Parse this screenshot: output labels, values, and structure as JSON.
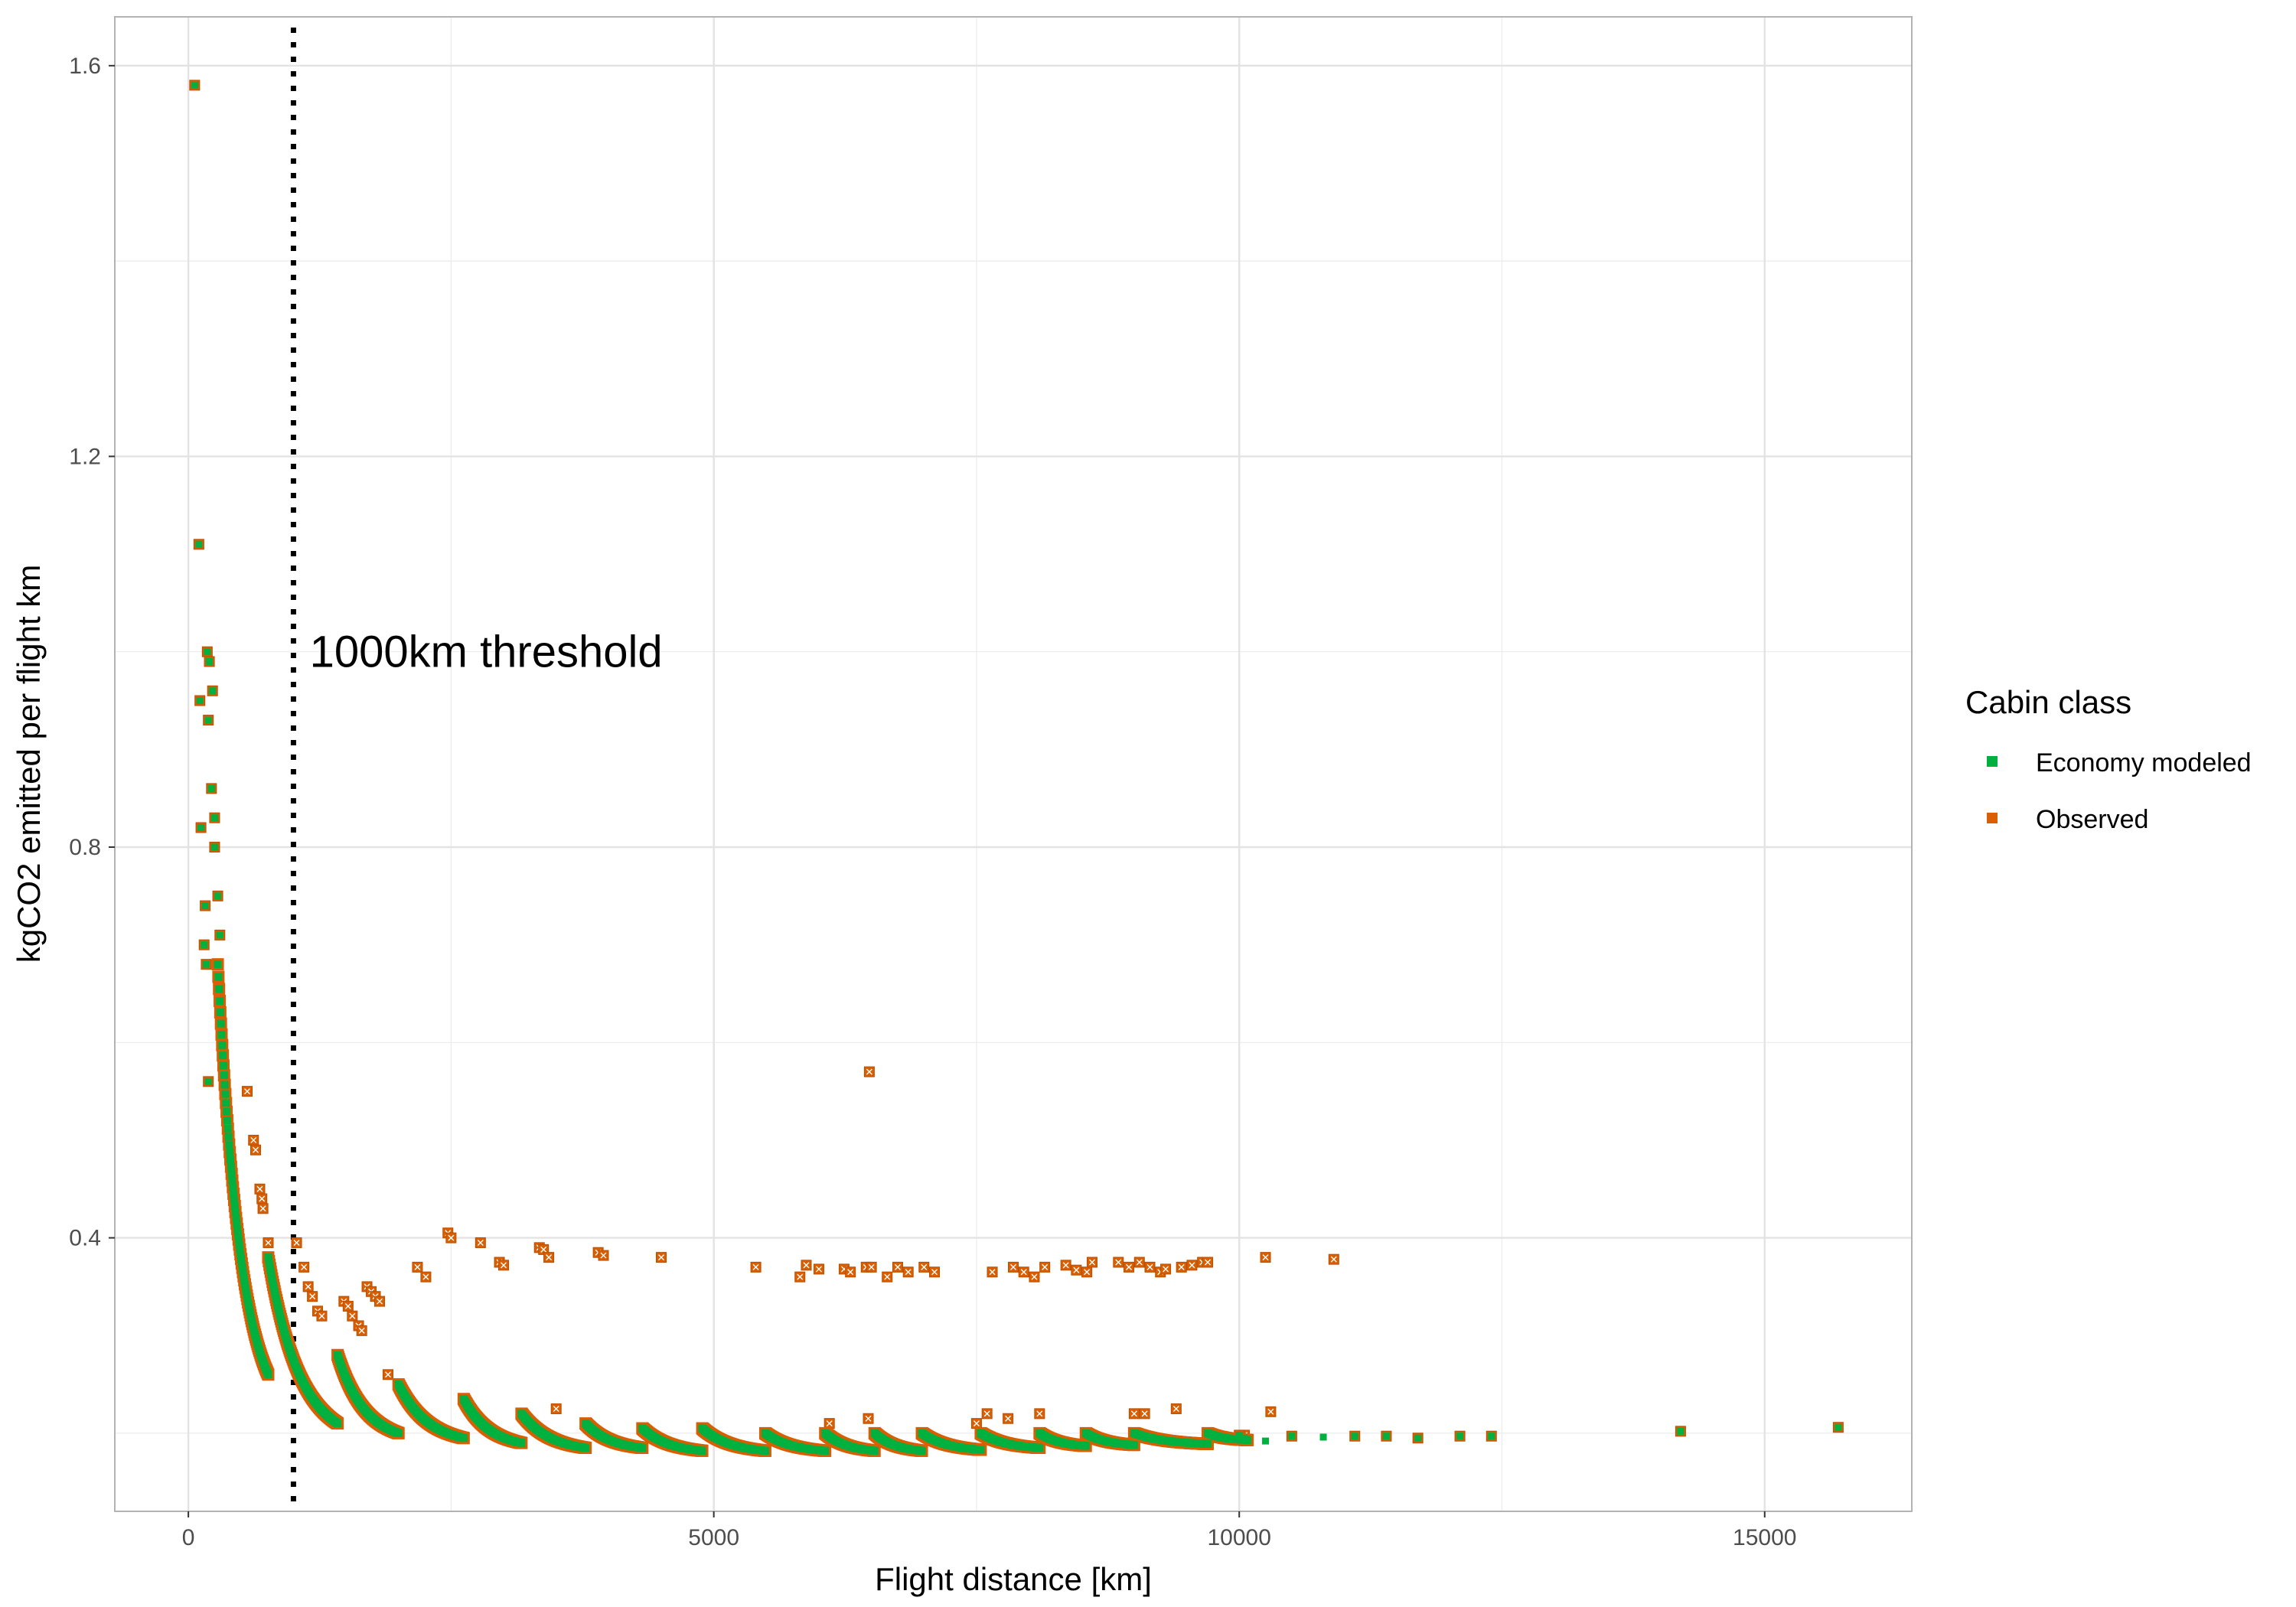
{
  "chart_data": {
    "type": "scatter",
    "title": "",
    "xlabel": "Flight distance [km]",
    "ylabel": "kgCO2 emitted per flight km",
    "xlim": [
      -700,
      16400
    ],
    "ylim": [
      0.12,
      1.65
    ],
    "x_ticks": [
      0,
      5000,
      10000,
      15000
    ],
    "x_tick_labels": [
      "0",
      "5000",
      "10000",
      "15000"
    ],
    "y_ticks": [
      0.4,
      0.8,
      1.2,
      1.6
    ],
    "y_tick_labels": [
      "0.4",
      "0.8",
      "1.2",
      "1.6"
    ],
    "grid": true,
    "legend_position": "right",
    "legend_title": "Cabin class",
    "colors": {
      "economy": "#00b140",
      "observed": "#d95f02",
      "threshold": "#000000",
      "grid": "#ebebeb",
      "panel_border": "#b3b3b3"
    },
    "annotations": [
      {
        "text": "1000km threshold",
        "x": 1300,
        "y": 1.0
      }
    ],
    "threshold_line": {
      "x": 1000,
      "style": "dotted"
    },
    "series": [
      {
        "name": "Economy modeled",
        "marker": "square",
        "curve_segments": [
          {
            "x_start": 280,
            "x_end": 760,
            "y_start": 0.68,
            "y_end": 0.26
          },
          {
            "x_start": 760,
            "x_end": 1420,
            "y_start": 0.38,
            "y_end": 0.21
          },
          {
            "x_start": 1420,
            "x_end": 2000,
            "y_start": 0.28,
            "y_end": 0.2
          },
          {
            "x_start": 2000,
            "x_end": 2620,
            "y_start": 0.25,
            "y_end": 0.195
          },
          {
            "x_start": 2620,
            "x_end": 3170,
            "y_start": 0.235,
            "y_end": 0.19
          },
          {
            "x_start": 3170,
            "x_end": 3780,
            "y_start": 0.22,
            "y_end": 0.185
          },
          {
            "x_start": 3780,
            "x_end": 4320,
            "y_start": 0.21,
            "y_end": 0.185
          },
          {
            "x_start": 4320,
            "x_end": 4890,
            "y_start": 0.205,
            "y_end": 0.182
          },
          {
            "x_start": 4890,
            "x_end": 5490,
            "y_start": 0.205,
            "y_end": 0.182
          },
          {
            "x_start": 5490,
            "x_end": 6060,
            "y_start": 0.2,
            "y_end": 0.182
          },
          {
            "x_start": 6060,
            "x_end": 6530,
            "y_start": 0.2,
            "y_end": 0.182
          },
          {
            "x_start": 6530,
            "x_end": 6980,
            "y_start": 0.2,
            "y_end": 0.182
          },
          {
            "x_start": 6980,
            "x_end": 7540,
            "y_start": 0.2,
            "y_end": 0.183
          },
          {
            "x_start": 7540,
            "x_end": 8100,
            "y_start": 0.2,
            "y_end": 0.185
          },
          {
            "x_start": 8100,
            "x_end": 8540,
            "y_start": 0.2,
            "y_end": 0.187
          },
          {
            "x_start": 8540,
            "x_end": 9000,
            "y_start": 0.2,
            "y_end": 0.188
          },
          {
            "x_start": 9000,
            "x_end": 9700,
            "y_start": 0.2,
            "y_end": 0.189
          },
          {
            "x_start": 9700,
            "x_end": 10080,
            "y_start": 0.2,
            "y_end": 0.193
          }
        ],
        "points": [
          [
            60,
            1.58
          ],
          [
            100,
            1.11
          ],
          [
            110,
            0.95
          ],
          [
            180,
            1.0
          ],
          [
            200,
            0.99
          ],
          [
            230,
            0.96
          ],
          [
            190,
            0.93
          ],
          [
            120,
            0.82
          ],
          [
            220,
            0.86
          ],
          [
            250,
            0.8
          ],
          [
            160,
            0.74
          ],
          [
            150,
            0.7
          ],
          [
            170,
            0.68
          ],
          [
            190,
            0.56
          ],
          [
            250,
            0.83
          ],
          [
            280,
            0.75
          ],
          [
            300,
            0.71
          ],
          [
            10000,
            0.198
          ],
          [
            10050,
            0.195
          ],
          [
            10250,
            0.192
          ],
          [
            10500,
            0.197
          ],
          [
            10800,
            0.196
          ],
          [
            11100,
            0.197
          ],
          [
            11400,
            0.197
          ],
          [
            11700,
            0.195
          ],
          [
            12100,
            0.197
          ],
          [
            12400,
            0.197
          ],
          [
            14200,
            0.202
          ],
          [
            15700,
            0.206
          ]
        ]
      },
      {
        "name": "Observed",
        "marker": "square-x",
        "points": [
          [
            60,
            1.58
          ],
          [
            100,
            1.11
          ],
          [
            110,
            0.95
          ],
          [
            180,
            1.0
          ],
          [
            200,
            0.99
          ],
          [
            230,
            0.96
          ],
          [
            190,
            0.93
          ],
          [
            120,
            0.82
          ],
          [
            220,
            0.86
          ],
          [
            250,
            0.8
          ],
          [
            160,
            0.74
          ],
          [
            150,
            0.7
          ],
          [
            170,
            0.68
          ],
          [
            190,
            0.56
          ],
          [
            250,
            0.83
          ],
          [
            280,
            0.75
          ],
          [
            300,
            0.71
          ],
          [
            560,
            0.55
          ],
          [
            620,
            0.5
          ],
          [
            640,
            0.49
          ],
          [
            680,
            0.45
          ],
          [
            700,
            0.44
          ],
          [
            710,
            0.43
          ],
          [
            760,
            0.395
          ],
          [
            1030,
            0.395
          ],
          [
            1100,
            0.37
          ],
          [
            1140,
            0.35
          ],
          [
            1180,
            0.34
          ],
          [
            1230,
            0.325
          ],
          [
            1270,
            0.32
          ],
          [
            1480,
            0.335
          ],
          [
            1520,
            0.33
          ],
          [
            1560,
            0.32
          ],
          [
            1620,
            0.31
          ],
          [
            1650,
            0.305
          ],
          [
            1700,
            0.35
          ],
          [
            1740,
            0.345
          ],
          [
            1780,
            0.34
          ],
          [
            1820,
            0.335
          ],
          [
            1900,
            0.26
          ],
          [
            2180,
            0.37
          ],
          [
            2260,
            0.36
          ],
          [
            2470,
            0.405
          ],
          [
            2500,
            0.4
          ],
          [
            2780,
            0.395
          ],
          [
            2960,
            0.375
          ],
          [
            3000,
            0.372
          ],
          [
            3340,
            0.39
          ],
          [
            3380,
            0.388
          ],
          [
            3430,
            0.38
          ],
          [
            3500,
            0.225
          ],
          [
            3900,
            0.385
          ],
          [
            3950,
            0.382
          ],
          [
            4500,
            0.38
          ],
          [
            5400,
            0.37
          ],
          [
            5820,
            0.36
          ],
          [
            5880,
            0.372
          ],
          [
            6000,
            0.368
          ],
          [
            6100,
            0.21
          ],
          [
            6240,
            0.368
          ],
          [
            6300,
            0.365
          ],
          [
            6450,
            0.37
          ],
          [
            6470,
            0.215
          ],
          [
            6480,
            0.57
          ],
          [
            6500,
            0.37
          ],
          [
            6650,
            0.36
          ],
          [
            6750,
            0.37
          ],
          [
            6850,
            0.365
          ],
          [
            7000,
            0.37
          ],
          [
            7100,
            0.365
          ],
          [
            7500,
            0.21
          ],
          [
            7600,
            0.22
          ],
          [
            7650,
            0.365
          ],
          [
            7800,
            0.215
          ],
          [
            7850,
            0.37
          ],
          [
            7950,
            0.365
          ],
          [
            8050,
            0.36
          ],
          [
            8100,
            0.22
          ],
          [
            8150,
            0.37
          ],
          [
            8350,
            0.372
          ],
          [
            8450,
            0.367
          ],
          [
            8550,
            0.365
          ],
          [
            8600,
            0.375
          ],
          [
            8850,
            0.375
          ],
          [
            8950,
            0.37
          ],
          [
            9000,
            0.22
          ],
          [
            9050,
            0.375
          ],
          [
            9100,
            0.22
          ],
          [
            9150,
            0.37
          ],
          [
            9250,
            0.365
          ],
          [
            9300,
            0.368
          ],
          [
            9400,
            0.225
          ],
          [
            9450,
            0.37
          ],
          [
            9550,
            0.372
          ],
          [
            9650,
            0.375
          ],
          [
            9700,
            0.375
          ],
          [
            10050,
            0.198
          ],
          [
            10250,
            0.38
          ],
          [
            10300,
            0.222
          ],
          [
            10900,
            0.378
          ],
          [
            10000,
            0.198
          ],
          [
            10500,
            0.197
          ],
          [
            11100,
            0.197
          ],
          [
            11400,
            0.197
          ],
          [
            11700,
            0.195
          ],
          [
            12100,
            0.197
          ],
          [
            12400,
            0.197
          ],
          [
            14200,
            0.202
          ],
          [
            15700,
            0.206
          ]
        ]
      }
    ]
  }
}
